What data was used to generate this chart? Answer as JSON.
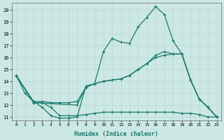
{
  "xlabel": "Humidex (Indice chaleur)",
  "xlim_min": -0.5,
  "xlim_max": 23.5,
  "ylim_min": 10.7,
  "ylim_max": 20.6,
  "yticks": [
    11,
    12,
    13,
    14,
    15,
    16,
    17,
    18,
    19,
    20
  ],
  "xticks": [
    0,
    1,
    2,
    3,
    4,
    5,
    6,
    7,
    8,
    9,
    10,
    11,
    12,
    13,
    14,
    15,
    16,
    17,
    18,
    19,
    20,
    21,
    22,
    23
  ],
  "bg_color": "#cce8e4",
  "grid_color": "#b8d8d4",
  "line_color": "#1a7a6e",
  "line_width": 0.9,
  "marker": "+",
  "marker_size": 3.5,
  "marker_lw": 0.8,
  "lines": [
    {
      "x": [
        0,
        1,
        2,
        3,
        4,
        5,
        6,
        7,
        8,
        9,
        10,
        11,
        12,
        13,
        14,
        15,
        16,
        17,
        18,
        19,
        20,
        21,
        22,
        23
      ],
      "y": [
        14.5,
        13.0,
        12.3,
        11.8,
        11.1,
        10.9,
        10.9,
        11.0,
        13.6,
        13.8,
        16.5,
        17.6,
        17.3,
        17.2,
        18.6,
        19.4,
        20.3,
        19.6,
        17.4,
        16.3,
        14.1,
        12.5,
        11.8,
        11.0
      ]
    },
    {
      "x": [
        0,
        2,
        7,
        8,
        9,
        10,
        11,
        12,
        13,
        14,
        15,
        16,
        17,
        18,
        19,
        20,
        21,
        22,
        23
      ],
      "y": [
        14.5,
        12.2,
        12.0,
        13.5,
        13.8,
        14.0,
        14.1,
        14.2,
        14.5,
        15.0,
        15.5,
        16.2,
        16.5,
        16.3,
        16.3,
        14.1,
        12.5,
        11.8,
        11.0
      ]
    },
    {
      "x": [
        0,
        2,
        3,
        4,
        5,
        6,
        7,
        8,
        9,
        10,
        11,
        12,
        13,
        14,
        15,
        16,
        17,
        18,
        19,
        20,
        21,
        22,
        23
      ],
      "y": [
        14.5,
        12.2,
        12.2,
        11.8,
        11.1,
        11.1,
        11.1,
        11.2,
        11.3,
        11.4,
        11.4,
        11.4,
        11.4,
        11.4,
        11.4,
        11.4,
        11.4,
        11.4,
        11.3,
        11.3,
        11.2,
        11.0,
        11.0
      ]
    },
    {
      "x": [
        0,
        2,
        3,
        4,
        5,
        6,
        7,
        8,
        9,
        10,
        11,
        12,
        13,
        14,
        15,
        16,
        17,
        18,
        19,
        20,
        21,
        22,
        23
      ],
      "y": [
        14.5,
        12.3,
        12.3,
        12.2,
        12.2,
        12.2,
        12.3,
        13.5,
        13.8,
        14.0,
        14.1,
        14.2,
        14.5,
        15.0,
        15.5,
        16.0,
        16.2,
        16.3,
        16.3,
        14.1,
        12.5,
        11.8,
        11.0
      ]
    }
  ]
}
